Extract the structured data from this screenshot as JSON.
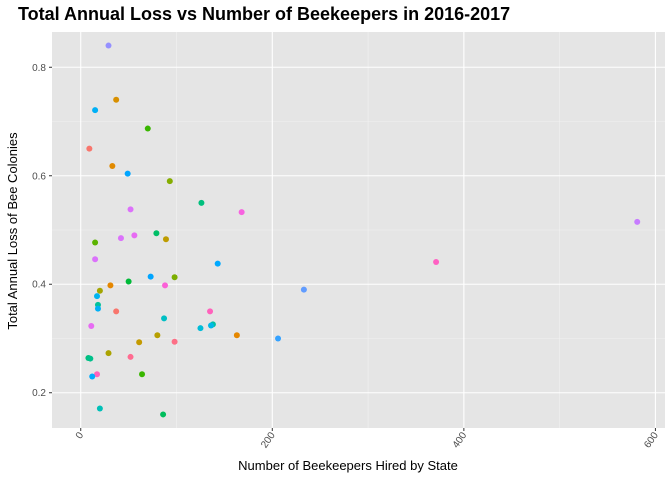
{
  "chart_data": {
    "type": "scatter",
    "title": "Total Annual Loss vs Number of Beekeepers in 2016-2017",
    "xlabel": "Number of Beekeepers Hired by State",
    "ylabel": "Total Annual Loss of Bee Colonies",
    "xlim": [
      -30,
      610
    ],
    "ylim": [
      0.135,
      0.865
    ],
    "xticks": [
      0,
      200,
      400,
      600
    ],
    "xtick_labels": [
      "0",
      "200",
      "400",
      "600"
    ],
    "yticks": [
      0.2,
      0.4,
      0.6,
      0.8
    ],
    "ytick_labels": [
      "0.2",
      "0.4",
      "0.6",
      "0.8"
    ],
    "x_minor": [
      100,
      300,
      500
    ],
    "y_minor": [
      0.3,
      0.5,
      0.7
    ],
    "grid": true,
    "panel_background": "#E5E5E5",
    "legend": "none",
    "points": [
      {
        "x": 29,
        "y": 0.84,
        "color": "#9590FF"
      },
      {
        "x": 37,
        "y": 0.74,
        "color": "#D89000"
      },
      {
        "x": 15,
        "y": 0.721,
        "color": "#00B0F6"
      },
      {
        "x": 70,
        "y": 0.687,
        "color": "#39B600"
      },
      {
        "x": 9,
        "y": 0.65,
        "color": "#F8766D"
      },
      {
        "x": 33,
        "y": 0.618,
        "color": "#E18A00"
      },
      {
        "x": 49,
        "y": 0.604,
        "color": "#00A5FF"
      },
      {
        "x": 93,
        "y": 0.59,
        "color": "#85AD00"
      },
      {
        "x": 126,
        "y": 0.55,
        "color": "#00BF7D"
      },
      {
        "x": 52,
        "y": 0.538,
        "color": "#DC71FA"
      },
      {
        "x": 168,
        "y": 0.533,
        "color": "#F763E0"
      },
      {
        "x": 581,
        "y": 0.515,
        "color": "#C77CFF"
      },
      {
        "x": 79,
        "y": 0.494,
        "color": "#00BE67"
      },
      {
        "x": 56,
        "y": 0.49,
        "color": "#E76BF3"
      },
      {
        "x": 42,
        "y": 0.485,
        "color": "#DB72FB"
      },
      {
        "x": 89,
        "y": 0.483,
        "color": "#BE9C00"
      },
      {
        "x": 15,
        "y": 0.477,
        "color": "#5BB300"
      },
      {
        "x": 15,
        "y": 0.446,
        "color": "#DB72FB"
      },
      {
        "x": 143,
        "y": 0.438,
        "color": "#00A9FF"
      },
      {
        "x": 371,
        "y": 0.441,
        "color": "#FF61C3"
      },
      {
        "x": 73,
        "y": 0.414,
        "color": "#00A5FF"
      },
      {
        "x": 98,
        "y": 0.413,
        "color": "#7CAE00"
      },
      {
        "x": 50,
        "y": 0.405,
        "color": "#00BA38"
      },
      {
        "x": 31,
        "y": 0.398,
        "color": "#E58700"
      },
      {
        "x": 88,
        "y": 0.398,
        "color": "#FB61D7"
      },
      {
        "x": 233,
        "y": 0.39,
        "color": "#619CFF"
      },
      {
        "x": 20,
        "y": 0.388,
        "color": "#A3A500"
      },
      {
        "x": 17,
        "y": 0.378,
        "color": "#00B4F0"
      },
      {
        "x": 18,
        "y": 0.362,
        "color": "#00C19A"
      },
      {
        "x": 18,
        "y": 0.355,
        "color": "#00B0F6"
      },
      {
        "x": 37,
        "y": 0.35,
        "color": "#F8766D"
      },
      {
        "x": 135,
        "y": 0.35,
        "color": "#FF62BC"
      },
      {
        "x": 87,
        "y": 0.337,
        "color": "#00BFC4"
      },
      {
        "x": 138,
        "y": 0.326,
        "color": "#00C1A3"
      },
      {
        "x": 136,
        "y": 0.324,
        "color": "#00B8E7"
      },
      {
        "x": 11,
        "y": 0.323,
        "color": "#E76BF3"
      },
      {
        "x": 125,
        "y": 0.319,
        "color": "#00BCD8"
      },
      {
        "x": 80,
        "y": 0.306,
        "color": "#B79F00"
      },
      {
        "x": 163,
        "y": 0.306,
        "color": "#E58700"
      },
      {
        "x": 206,
        "y": 0.3,
        "color": "#35A2FF"
      },
      {
        "x": 98,
        "y": 0.294,
        "color": "#FD6F86"
      },
      {
        "x": 61,
        "y": 0.293,
        "color": "#C49A00"
      },
      {
        "x": 29,
        "y": 0.273,
        "color": "#ABA300"
      },
      {
        "x": 52,
        "y": 0.266,
        "color": "#FF6C91"
      },
      {
        "x": 8,
        "y": 0.264,
        "color": "#00BF7D"
      },
      {
        "x": 10,
        "y": 0.263,
        "color": "#00C08B"
      },
      {
        "x": 17,
        "y": 0.234,
        "color": "#FF62BC"
      },
      {
        "x": 64,
        "y": 0.234,
        "color": "#39B600"
      },
      {
        "x": 12,
        "y": 0.23,
        "color": "#00ABFD"
      },
      {
        "x": 20,
        "y": 0.171,
        "color": "#00C0B8"
      },
      {
        "x": 86,
        "y": 0.16,
        "color": "#00BD5C"
      }
    ]
  }
}
